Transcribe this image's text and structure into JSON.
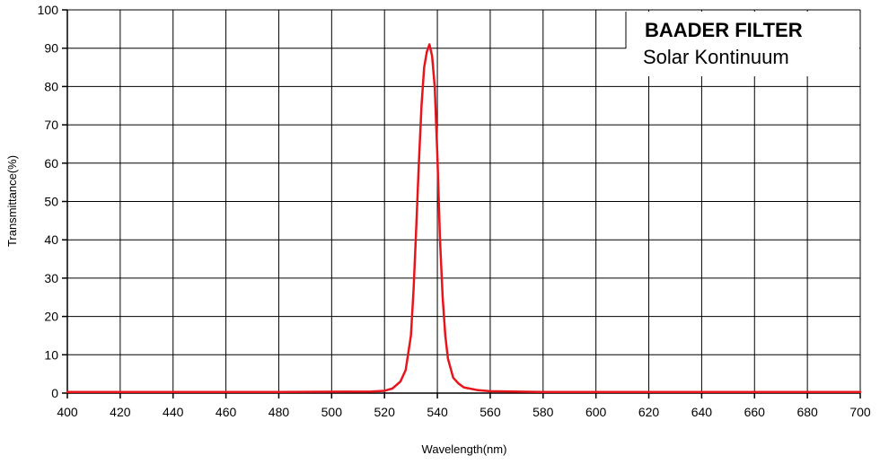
{
  "chart_data": {
    "type": "line",
    "title": "",
    "xlabel": "Wavelength(nm)",
    "ylabel": "Transmittance(%)",
    "xlim": [
      400,
      700
    ],
    "ylim": [
      0,
      100
    ],
    "xticks": [
      400,
      420,
      440,
      460,
      480,
      500,
      520,
      540,
      560,
      580,
      600,
      620,
      640,
      660,
      680,
      700
    ],
    "yticks": [
      0,
      10,
      20,
      30,
      40,
      50,
      60,
      70,
      80,
      90,
      100
    ],
    "grid": true,
    "legend": "none",
    "series": [
      {
        "color": "#e8141c",
        "x": [
          400,
          480,
          515,
          520,
          523,
          526,
          528,
          530,
          531,
          532,
          533,
          534,
          535,
          536,
          537,
          538,
          539,
          540,
          541,
          542,
          543,
          544,
          546,
          548,
          550,
          555,
          560,
          580,
          700
        ],
        "y": [
          0.3,
          0.3,
          0.4,
          0.6,
          1.2,
          3,
          6,
          15,
          27,
          43,
          60,
          75,
          85,
          89,
          91,
          88,
          80,
          62,
          40,
          25,
          15,
          9,
          4,
          2.5,
          1.5,
          0.8,
          0.5,
          0.3,
          0.3
        ]
      }
    ]
  },
  "annotation": {
    "brand": "BAADER FILTER",
    "product": "Solar Kontinuum"
  }
}
